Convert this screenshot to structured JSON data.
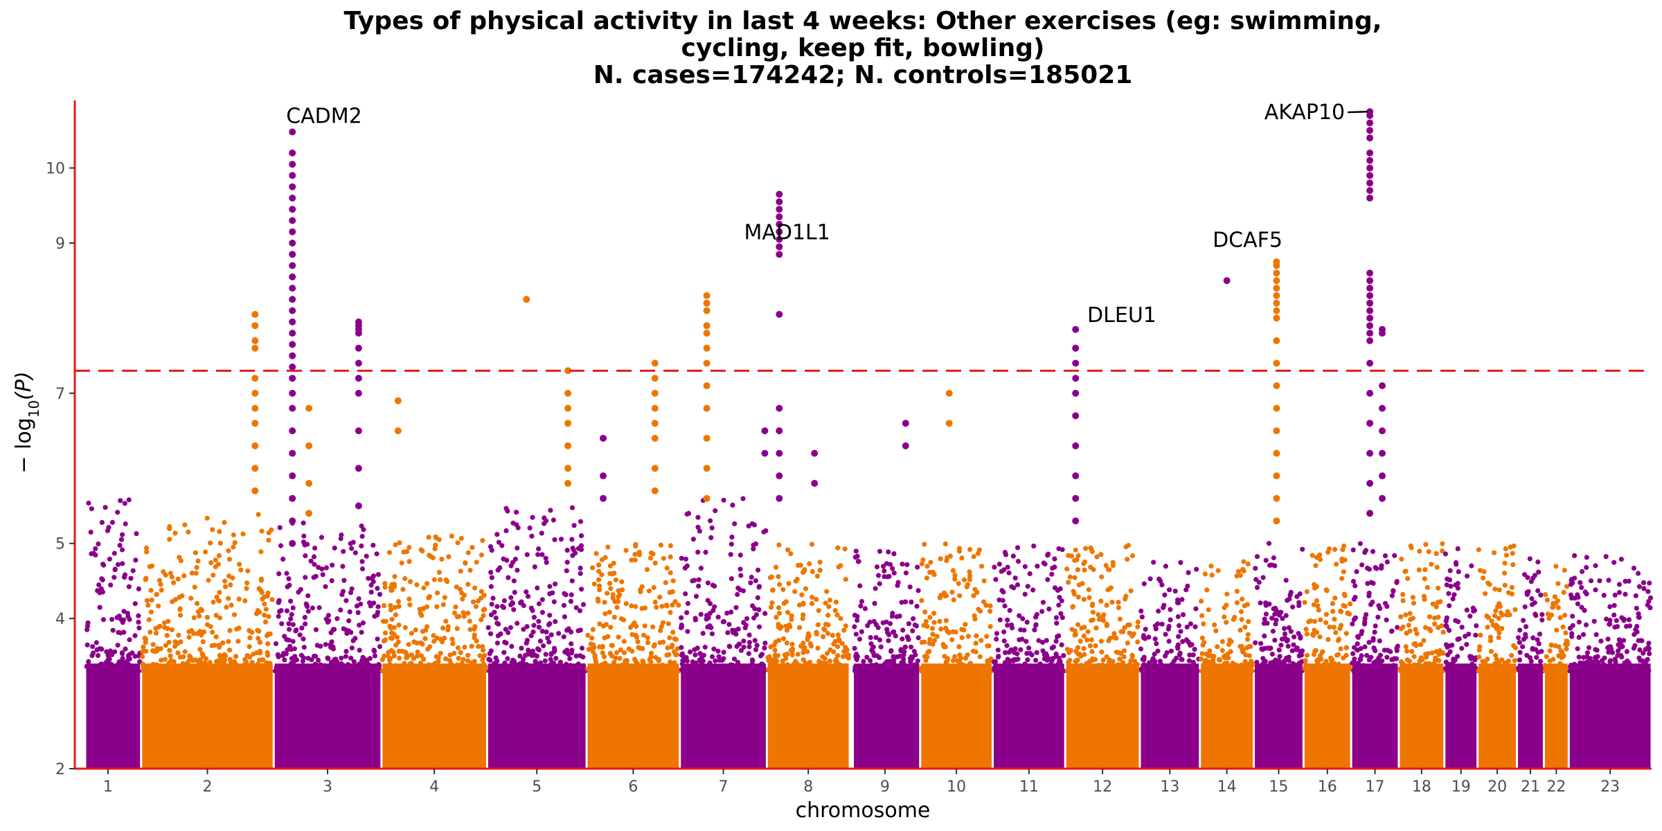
{
  "chart_data": {
    "type": "scatter",
    "title_lines": [
      "Types of physical activity in last 4 weeks: Other exercises (eg: swimming,",
      "cycling, keep fit, bowling)",
      "N. cases=174242; N. controls=185021"
    ],
    "xlabel": "chromosome",
    "ylabel": "− log10(P)",
    "ylim": [
      2,
      10.9
    ],
    "yticks": [
      2,
      4,
      5,
      7,
      9,
      10
    ],
    "ytick_labels": [
      "2",
      "4",
      "5",
      "7",
      "9",
      "10"
    ],
    "significance_threshold": 7.3,
    "grid": false,
    "colors": {
      "odd": "#8b008b",
      "even": "#ee7600",
      "threshold": "#e41a1c",
      "axis": "#e41a1c"
    },
    "chromosomes": [
      {
        "label": "1",
        "start": 0.0,
        "end": 3.2,
        "color": "odd",
        "top": 5.6,
        "gapStart": 0.55
      },
      {
        "label": "2",
        "start": 3.2,
        "end": 9.6,
        "color": "even",
        "top": 5.4
      },
      {
        "label": "3",
        "start": 9.6,
        "end": 14.8,
        "color": "odd",
        "top": 5.3
      },
      {
        "label": "4",
        "start": 14.8,
        "end": 19.9,
        "color": "even",
        "top": 5.1
      },
      {
        "label": "5",
        "start": 19.9,
        "end": 24.7,
        "color": "odd",
        "top": 5.5
      },
      {
        "label": "6",
        "start": 24.7,
        "end": 29.2,
        "color": "even",
        "top": 5.0
      },
      {
        "label": "7",
        "start": 29.2,
        "end": 33.4,
        "color": "odd",
        "top": 5.6
      },
      {
        "label": "8",
        "start": 33.4,
        "end": 37.4,
        "color": "even",
        "top": 5.0
      },
      {
        "label": "9",
        "start": 37.4,
        "end": 40.8,
        "color": "odd",
        "top": 4.9,
        "gapStart": 0.2
      },
      {
        "label": "10",
        "start": 40.8,
        "end": 44.3,
        "color": "even",
        "top": 5.0
      },
      {
        "label": "11",
        "start": 44.3,
        "end": 47.8,
        "color": "odd",
        "top": 5.0
      },
      {
        "label": "12",
        "start": 47.8,
        "end": 51.4,
        "color": "even",
        "top": 5.0
      },
      {
        "label": "13",
        "start": 51.4,
        "end": 54.3,
        "color": "odd",
        "top": 4.8
      },
      {
        "label": "14",
        "start": 54.3,
        "end": 56.9,
        "color": "even",
        "top": 4.8
      },
      {
        "label": "15",
        "start": 56.9,
        "end": 59.3,
        "color": "odd",
        "top": 5.0
      },
      {
        "label": "16",
        "start": 59.3,
        "end": 61.6,
        "color": "even",
        "top": 5.0
      },
      {
        "label": "17",
        "start": 61.6,
        "end": 63.9,
        "color": "odd",
        "top": 5.0
      },
      {
        "label": "18",
        "start": 63.9,
        "end": 66.1,
        "color": "even",
        "top": 5.0
      },
      {
        "label": "19",
        "start": 66.1,
        "end": 67.7,
        "color": "odd",
        "top": 5.0
      },
      {
        "label": "20",
        "start": 67.7,
        "end": 69.6,
        "color": "even",
        "top": 5.0
      },
      {
        "label": "21",
        "start": 69.6,
        "end": 70.9,
        "color": "odd",
        "top": 4.8
      },
      {
        "label": "22",
        "start": 70.9,
        "end": 72.1,
        "color": "even",
        "top": 4.8
      },
      {
        "label": "23",
        "start": 72.1,
        "end": 76.1,
        "color": "odd",
        "top": 4.9
      }
    ],
    "peaks": [
      {
        "pos": 10.5,
        "color": "odd",
        "values": [
          10.48,
          10.2,
          10.05,
          9.9,
          9.75,
          9.6,
          9.45,
          9.3,
          9.15,
          9.0,
          8.85,
          8.7,
          8.55,
          8.4,
          8.25,
          8.1,
          7.95,
          7.8,
          7.65,
          7.5,
          7.35,
          7.2,
          7.0,
          6.8,
          6.5,
          6.2,
          5.9,
          5.6,
          5.3,
          5.0
        ]
      },
      {
        "pos": 13.7,
        "color": "odd",
        "values": [
          7.95,
          7.9,
          7.85,
          7.8,
          7.6,
          7.4,
          7.2,
          7.0,
          6.5,
          6.0,
          5.5
        ]
      },
      {
        "pos": 8.7,
        "color": "even",
        "values": [
          8.05,
          7.9,
          7.7,
          7.6,
          7.2,
          7.0,
          6.8,
          6.6,
          6.3,
          6.0,
          5.7
        ]
      },
      {
        "pos": 11.3,
        "color": "even",
        "values": [
          6.8,
          6.3,
          5.8,
          5.4
        ]
      },
      {
        "pos": 21.8,
        "color": "even",
        "values": [
          8.25
        ]
      },
      {
        "pos": 30.5,
        "color": "even",
        "values": [
          8.3,
          8.2,
          8.1,
          7.9,
          7.8,
          7.6,
          7.4,
          7.1,
          6.8,
          6.4,
          6.0,
          5.6
        ]
      },
      {
        "pos": 28.0,
        "color": "even",
        "values": [
          7.4,
          7.2,
          7.0,
          6.8,
          6.6,
          6.4,
          6.0,
          5.7
        ]
      },
      {
        "pos": 34.0,
        "color": "odd",
        "values": [
          9.65,
          9.55,
          9.45,
          9.35,
          9.25,
          9.15,
          9.05,
          8.95,
          8.85,
          8.05,
          6.8,
          6.5,
          6.2,
          5.9,
          5.6
        ]
      },
      {
        "pos": 48.3,
        "color": "odd",
        "values": [
          7.85,
          7.6,
          7.4,
          7.2,
          7.0,
          6.7,
          6.3,
          5.9,
          5.6,
          5.3
        ]
      },
      {
        "pos": 55.6,
        "color": "odd",
        "values": [
          8.5
        ]
      },
      {
        "pos": 58.0,
        "color": "even",
        "values": [
          8.75,
          8.7,
          8.6,
          8.5,
          8.4,
          8.3,
          8.2,
          8.1,
          8.0,
          7.7,
          7.4,
          7.1,
          6.8,
          6.5,
          6.2,
          5.9,
          5.6,
          5.3
        ]
      },
      {
        "pos": 62.5,
        "color": "odd",
        "values": [
          10.75,
          10.7,
          10.6,
          10.5,
          10.4,
          10.2,
          10.1,
          10.0,
          9.9,
          9.8,
          9.7,
          9.6,
          8.6,
          8.5,
          8.4,
          8.3,
          8.2,
          8.1,
          8.0,
          7.9,
          7.8,
          7.7,
          7.4,
          7.0,
          6.6,
          6.2,
          5.8,
          5.4
        ]
      },
      {
        "pos": 63.1,
        "color": "odd",
        "values": [
          7.85,
          7.8,
          7.1,
          6.8,
          6.5,
          6.2,
          5.9,
          5.6
        ]
      },
      {
        "pos": 25.5,
        "color": "odd",
        "values": [
          6.4,
          5.9,
          5.6
        ]
      },
      {
        "pos": 35.7,
        "color": "odd",
        "values": [
          6.2,
          5.8
        ]
      },
      {
        "pos": 42.2,
        "color": "even",
        "values": [
          7.0,
          6.6
        ]
      },
      {
        "pos": 23.8,
        "color": "even",
        "values": [
          7.3,
          7.0,
          6.8,
          6.6,
          6.3,
          6.0,
          5.8
        ]
      },
      {
        "pos": 15.6,
        "color": "even",
        "values": [
          6.9,
          6.5
        ]
      },
      {
        "pos": 33.3,
        "color": "odd",
        "values": [
          6.5,
          6.2
        ]
      },
      {
        "pos": 40.1,
        "color": "odd",
        "values": [
          6.6,
          6.3
        ]
      }
    ],
    "genes": [
      {
        "label": "CADM2",
        "x": 10.2,
        "y": 10.6,
        "anchor": "start"
      },
      {
        "label": "MAD1L1",
        "x": 32.3,
        "y": 9.05,
        "anchor": "start"
      },
      {
        "label": "DLEU1",
        "x": 52.2,
        "y": 7.95,
        "anchor": "end"
      },
      {
        "label": "DCAF5",
        "x": 56.6,
        "y": 8.95,
        "anchor": "middle"
      },
      {
        "label": "AKAP10",
        "x": 61.3,
        "y": 10.65,
        "anchor": "end",
        "leader": true
      }
    ]
  }
}
